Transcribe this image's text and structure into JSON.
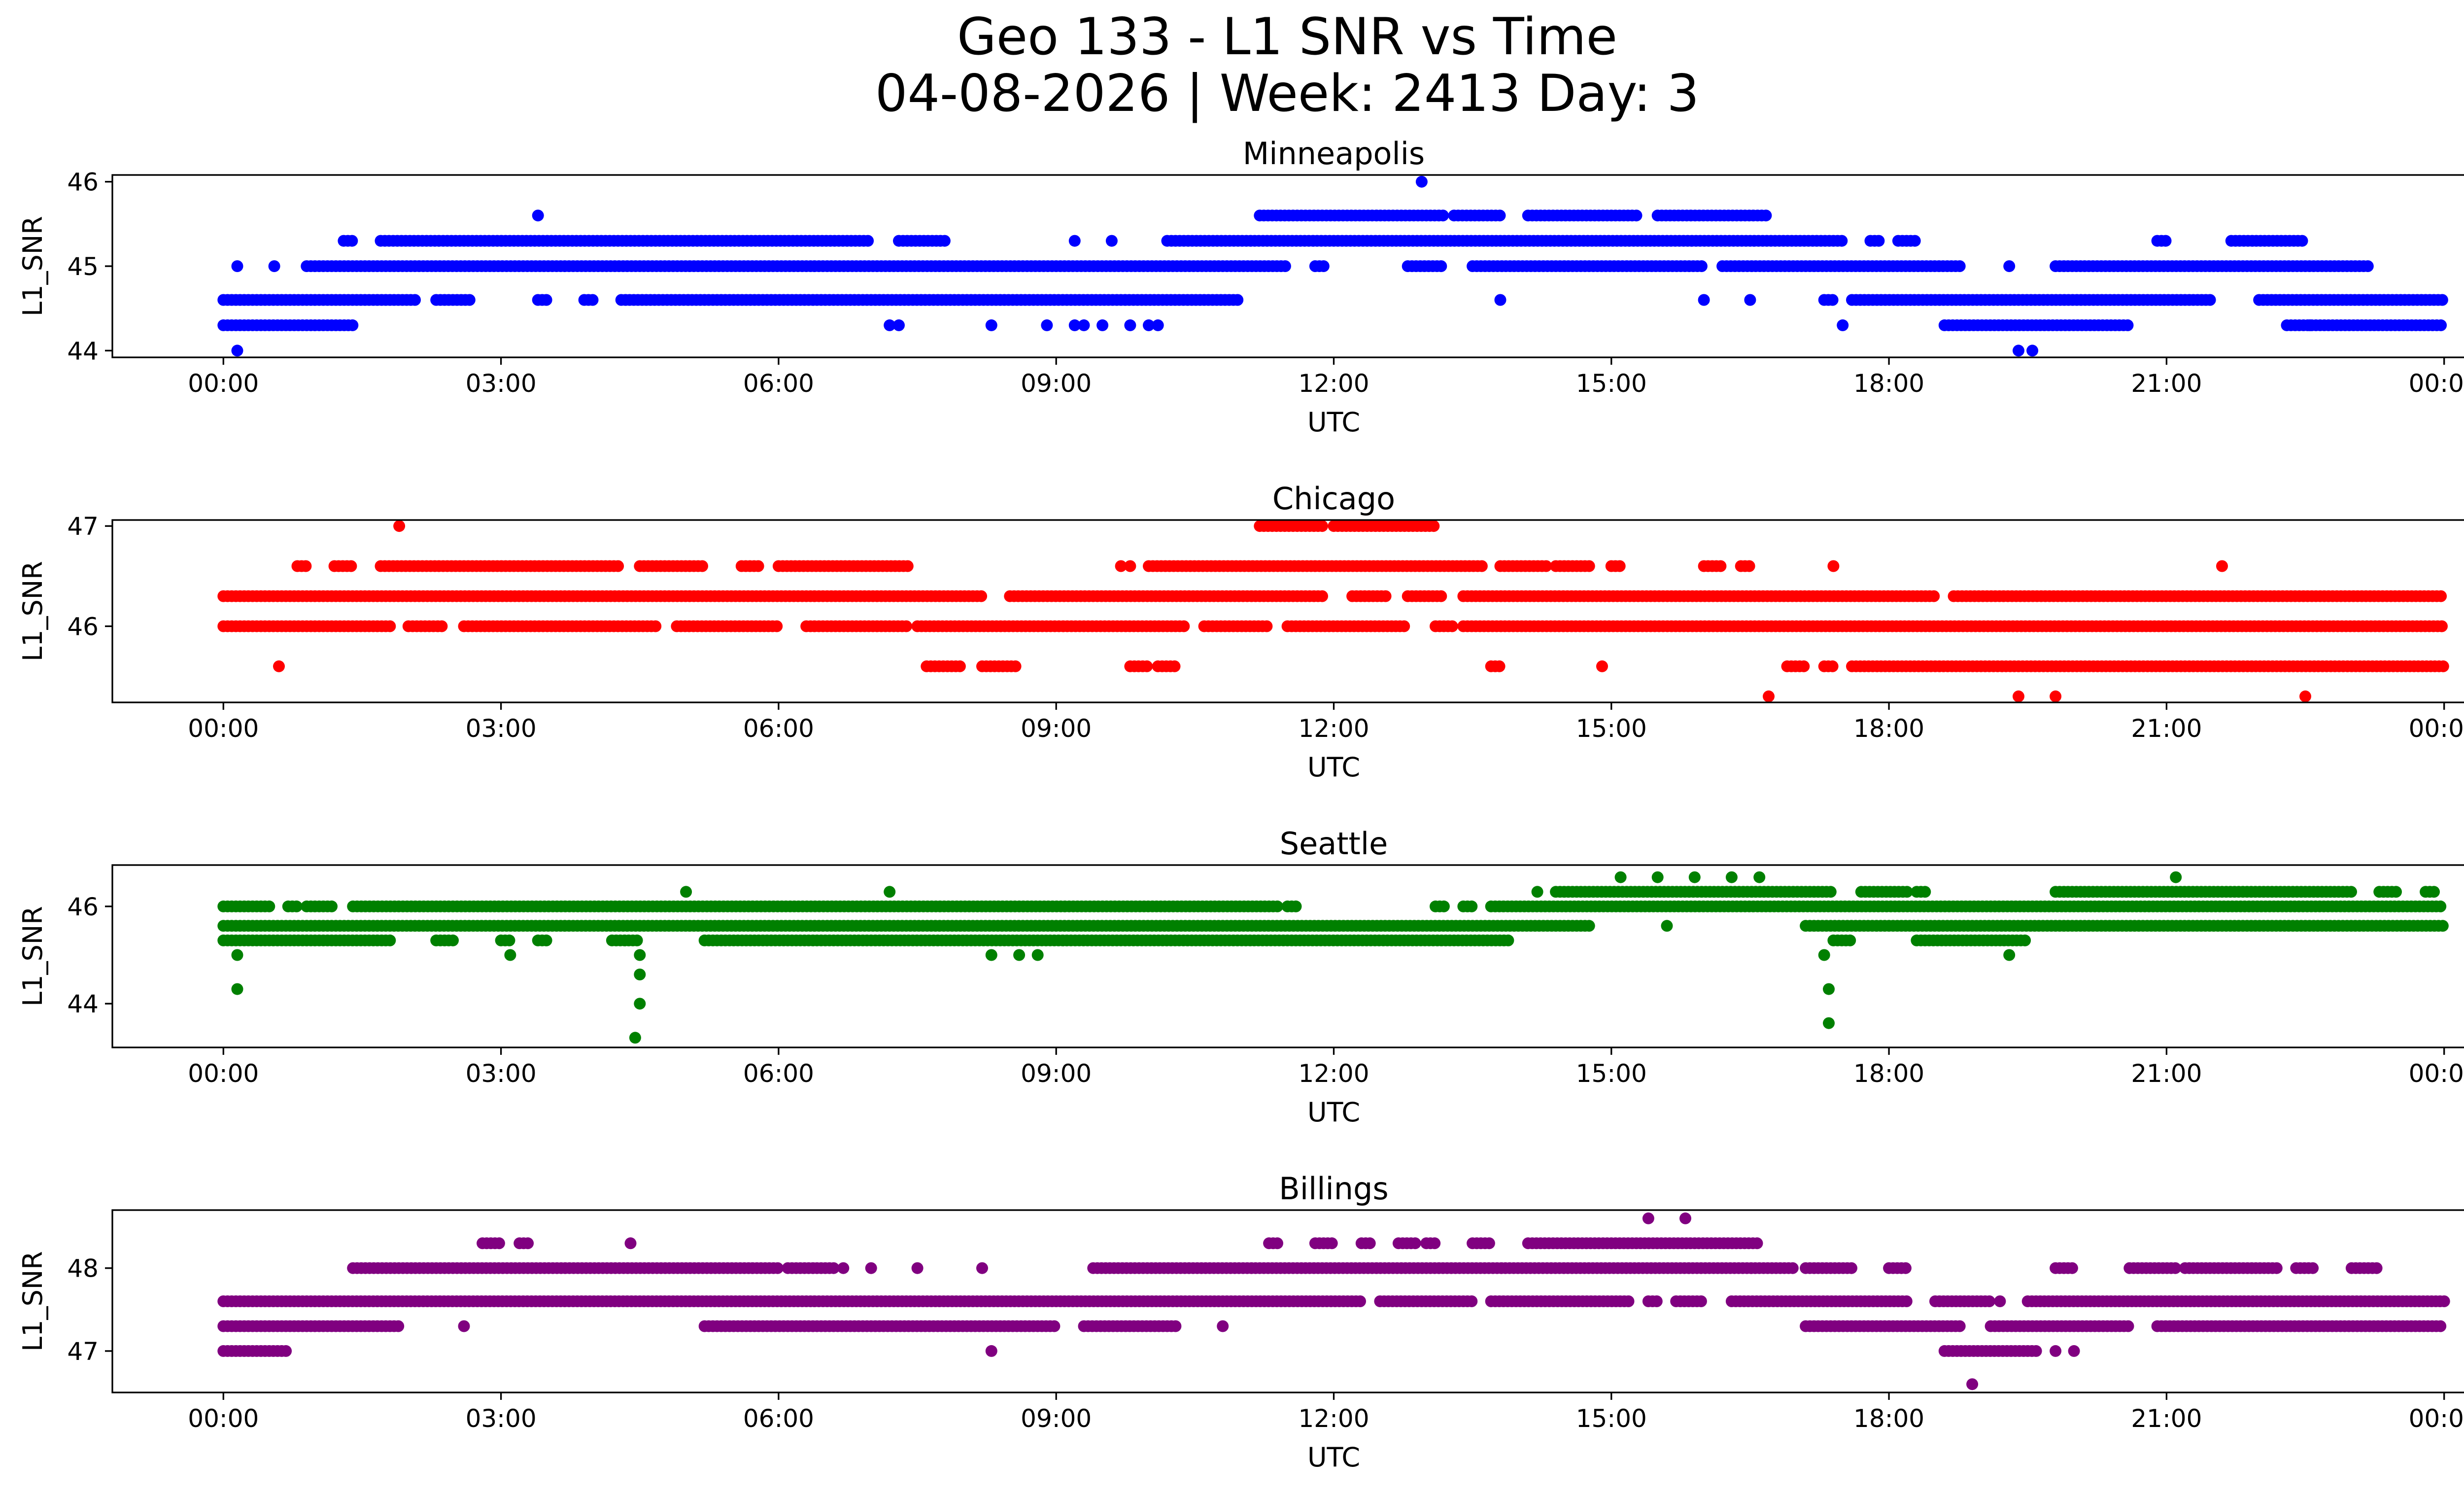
{
  "figure": {
    "title_line1": "Geo 133 - L1 SNR vs Time",
    "title_line2": "04-08-2026 | Week: 2413 Day: 3"
  },
  "chart_data": [
    {
      "type": "scatter",
      "title": "Minneapolis",
      "xlabel": "UTC",
      "ylabel": "L1_SNR",
      "color": "#0000ff",
      "x_unit": "hours UTC",
      "xlim": [
        -1.2,
        25.2
      ],
      "ylim": [
        43.92,
        46.08
      ],
      "xticks": [
        0,
        3,
        6,
        9,
        12,
        15,
        18,
        21,
        24
      ],
      "xtick_labels": [
        "00:00",
        "03:00",
        "06:00",
        "09:00",
        "12:00",
        "15:00",
        "18:00",
        "21:00",
        "00:00"
      ],
      "yticks": [
        44,
        45,
        46
      ],
      "ytick_labels": [
        "44",
        "45",
        "46"
      ],
      "bands": [
        {
          "y": 44.6,
          "segments": [
            [
              0,
              2.1
            ],
            [
              2.3,
              2.7
            ],
            [
              3.4,
              3.5
            ],
            [
              3.9,
              4.0
            ],
            [
              4.3,
              11.0
            ],
            [
              17.3,
              17.4
            ],
            [
              17.6,
              21.5
            ],
            [
              22.0,
              24.0
            ]
          ]
        },
        {
          "y": 44.3,
          "segments": [
            [
              0,
              1.4
            ],
            [
              18.6,
              20.6
            ],
            [
              22.3,
              24.0
            ]
          ]
        },
        {
          "y": 45.0,
          "segments": [
            [
              0.9,
              11.5
            ],
            [
              11.8,
              11.9
            ],
            [
              12.8,
              13.2
            ],
            [
              13.5,
              16.0
            ],
            [
              16.2,
              18.8
            ],
            [
              19.8,
              23.2
            ]
          ]
        },
        {
          "y": 45.3,
          "segments": [
            [
              1.3,
              1.4
            ],
            [
              1.7,
              7.0
            ],
            [
              7.3,
              7.8
            ],
            [
              10.2,
              17.5
            ],
            [
              17.8,
              17.9
            ],
            [
              18.1,
              18.3
            ],
            [
              20.9,
              21.0
            ],
            [
              21.7,
              22.5
            ]
          ]
        },
        {
          "y": 45.6,
          "segments": [
            [
              11.2,
              13.2
            ],
            [
              13.3,
              13.8
            ],
            [
              14.1,
              15.3
            ],
            [
              15.5,
              16.7
            ]
          ]
        }
      ],
      "points": [
        {
          "x": 0.15,
          "y": 44.0
        },
        {
          "x": 0.15,
          "y": 45.0
        },
        {
          "x": 0.55,
          "y": 45.0
        },
        {
          "x": 3.4,
          "y": 45.6
        },
        {
          "x": 7.2,
          "y": 44.3
        },
        {
          "x": 7.3,
          "y": 44.3
        },
        {
          "x": 8.3,
          "y": 44.3
        },
        {
          "x": 8.9,
          "y": 44.3
        },
        {
          "x": 9.2,
          "y": 44.3
        },
        {
          "x": 9.3,
          "y": 44.3
        },
        {
          "x": 9.5,
          "y": 44.3
        },
        {
          "x": 9.8,
          "y": 44.3
        },
        {
          "x": 10.0,
          "y": 44.3
        },
        {
          "x": 10.1,
          "y": 44.3
        },
        {
          "x": 9.2,
          "y": 45.3
        },
        {
          "x": 9.6,
          "y": 45.3
        },
        {
          "x": 12.95,
          "y": 46.0
        },
        {
          "x": 13.8,
          "y": 44.6
        },
        {
          "x": 16.0,
          "y": 44.6
        },
        {
          "x": 16.5,
          "y": 44.6
        },
        {
          "x": 17.5,
          "y": 44.3
        },
        {
          "x": 19.3,
          "y": 45.0
        },
        {
          "x": 19.4,
          "y": 44.0
        },
        {
          "x": 19.55,
          "y": 44.0
        },
        {
          "x": 22.55,
          "y": 44.3
        }
      ]
    },
    {
      "type": "scatter",
      "title": "Chicago",
      "xlabel": "UTC",
      "ylabel": "L1_SNR",
      "color": "#ff0000",
      "x_unit": "hours UTC",
      "xlim": [
        -1.2,
        25.2
      ],
      "ylim": [
        45.24,
        47.06
      ],
      "xticks": [
        0,
        3,
        6,
        9,
        12,
        15,
        18,
        21,
        24
      ],
      "xtick_labels": [
        "00:00",
        "03:00",
        "06:00",
        "09:00",
        "12:00",
        "15:00",
        "18:00",
        "21:00",
        "00:00"
      ],
      "yticks": [
        46,
        47
      ],
      "ytick_labels": [
        "46",
        "47"
      ],
      "bands": [
        {
          "y": 46.3,
          "segments": [
            [
              0,
              8.2
            ],
            [
              8.5,
              11.9
            ],
            [
              12.2,
              12.6
            ],
            [
              12.8,
              13.2
            ],
            [
              13.4,
              18.5
            ],
            [
              18.7,
              24.0
            ]
          ]
        },
        {
          "y": 46.0,
          "segments": [
            [
              0,
              1.8
            ],
            [
              2.0,
              2.4
            ],
            [
              2.6,
              4.7
            ],
            [
              4.9,
              6.0
            ],
            [
              6.3,
              7.4
            ],
            [
              7.5,
              10.4
            ],
            [
              10.6,
              11.3
            ],
            [
              11.5,
              12.8
            ],
            [
              13.1,
              13.3
            ],
            [
              13.4,
              24.0
            ]
          ]
        },
        {
          "y": 46.6,
          "segments": [
            [
              0.8,
              0.9
            ],
            [
              1.2,
              1.4
            ],
            [
              1.7,
              4.3
            ],
            [
              4.5,
              5.2
            ],
            [
              5.6,
              5.8
            ],
            [
              6.0,
              7.4
            ],
            [
              10.0,
              13.6
            ],
            [
              13.8,
              14.3
            ],
            [
              14.4,
              14.8
            ],
            [
              15.0,
              15.1
            ],
            [
              16.0,
              16.2
            ],
            [
              16.4,
              16.5
            ]
          ]
        },
        {
          "y": 45.6,
          "segments": [
            [
              7.6,
              8.0
            ],
            [
              8.2,
              8.6
            ],
            [
              9.8,
              10.0
            ],
            [
              10.1,
              10.3
            ],
            [
              13.7,
              13.8
            ],
            [
              16.9,
              17.1
            ],
            [
              17.3,
              17.4
            ],
            [
              17.6,
              24.0
            ]
          ]
        },
        {
          "y": 47.0,
          "segments": [
            [
              11.2,
              11.9
            ],
            [
              12.0,
              13.1
            ]
          ]
        }
      ],
      "points": [
        {
          "x": 0.6,
          "y": 45.6
        },
        {
          "x": 1.9,
          "y": 47.0
        },
        {
          "x": 9.7,
          "y": 46.6
        },
        {
          "x": 9.8,
          "y": 46.6
        },
        {
          "x": 14.9,
          "y": 45.6
        },
        {
          "x": 16.7,
          "y": 45.3
        },
        {
          "x": 17.4,
          "y": 46.6
        },
        {
          "x": 19.4,
          "y": 45.3
        },
        {
          "x": 19.8,
          "y": 45.3
        },
        {
          "x": 21.6,
          "y": 46.6
        },
        {
          "x": 22.5,
          "y": 45.3
        }
      ]
    },
    {
      "type": "scatter",
      "title": "Seattle",
      "xlabel": "UTC",
      "ylabel": "L1_SNR",
      "color": "#008000",
      "x_unit": "hours UTC",
      "xlim": [
        -1.2,
        25.2
      ],
      "ylim": [
        43.1,
        46.85
      ],
      "xticks": [
        0,
        3,
        6,
        9,
        12,
        15,
        18,
        21,
        24
      ],
      "xtick_labels": [
        "00:00",
        "03:00",
        "06:00",
        "09:00",
        "12:00",
        "15:00",
        "18:00",
        "21:00",
        "00:00"
      ],
      "yticks": [
        44,
        46
      ],
      "ytick_labels": [
        "44",
        "46"
      ],
      "bands": [
        {
          "y": 45.6,
          "segments": [
            [
              0,
              14.8
            ],
            [
              17.1,
              24.0
            ]
          ]
        },
        {
          "y": 45.3,
          "segments": [
            [
              0,
              1.8
            ],
            [
              2.3,
              2.5
            ],
            [
              3.0,
              3.1
            ],
            [
              3.4,
              3.5
            ],
            [
              4.2,
              4.5
            ],
            [
              5.2,
              13.9
            ]
          ]
        },
        {
          "y": 46.0,
          "segments": [
            [
              0,
              0.5
            ],
            [
              0.7,
              0.8
            ],
            [
              0.9,
              1.2
            ],
            [
              1.4,
              11.4
            ],
            [
              11.5,
              11.6
            ],
            [
              13.1,
              13.2
            ],
            [
              13.4,
              13.5
            ],
            [
              13.7,
              24.0
            ]
          ]
        },
        {
          "y": 46.3,
          "segments": [
            [
              14.4,
              17.4
            ],
            [
              17.7,
              18.2
            ],
            [
              18.3,
              18.4
            ],
            [
              19.8,
              23.0
            ],
            [
              23.3,
              23.5
            ],
            [
              23.8,
              23.9
            ]
          ]
        },
        {
          "y": 45.3,
          "segments": [
            [
              17.4,
              17.6
            ],
            [
              18.3,
              19.5
            ]
          ]
        }
      ],
      "points": [
        {
          "x": 0.15,
          "y": 45.0
        },
        {
          "x": 0.15,
          "y": 44.3
        },
        {
          "x": 3.1,
          "y": 45.0
        },
        {
          "x": 4.5,
          "y": 45.0
        },
        {
          "x": 4.5,
          "y": 44.6
        },
        {
          "x": 4.5,
          "y": 44.0
        },
        {
          "x": 4.45,
          "y": 43.3
        },
        {
          "x": 5.0,
          "y": 46.3
        },
        {
          "x": 7.2,
          "y": 46.3
        },
        {
          "x": 8.3,
          "y": 45.0
        },
        {
          "x": 8.6,
          "y": 45.0
        },
        {
          "x": 8.8,
          "y": 45.0
        },
        {
          "x": 14.2,
          "y": 46.3
        },
        {
          "x": 15.1,
          "y": 46.6
        },
        {
          "x": 15.6,
          "y": 45.6
        },
        {
          "x": 15.5,
          "y": 46.6
        },
        {
          "x": 15.9,
          "y": 46.6
        },
        {
          "x": 16.3,
          "y": 46.6
        },
        {
          "x": 16.6,
          "y": 46.6
        },
        {
          "x": 17.3,
          "y": 45.0
        },
        {
          "x": 17.35,
          "y": 44.3
        },
        {
          "x": 17.35,
          "y": 43.6
        },
        {
          "x": 19.3,
          "y": 45.0
        },
        {
          "x": 21.1,
          "y": 46.6
        }
      ]
    },
    {
      "type": "scatter",
      "title": "Billings",
      "xlabel": "UTC",
      "ylabel": "L1_SNR",
      "color": "#800080",
      "x_unit": "hours UTC",
      "xlim": [
        -1.2,
        25.2
      ],
      "ylim": [
        46.5,
        48.7
      ],
      "xticks": [
        0,
        3,
        6,
        9,
        12,
        15,
        18,
        21,
        24
      ],
      "xtick_labels": [
        "00:00",
        "03:00",
        "06:00",
        "09:00",
        "12:00",
        "15:00",
        "18:00",
        "21:00",
        "00:00"
      ],
      "yticks": [
        47,
        48
      ],
      "ytick_labels": [
        "47",
        "48"
      ],
      "bands": [
        {
          "y": 47.6,
          "segments": [
            [
              0,
              12.3
            ],
            [
              12.5,
              13.5
            ],
            [
              13.7,
              15.2
            ],
            [
              15.4,
              15.5
            ],
            [
              15.7,
              16.0
            ],
            [
              16.3,
              18.2
            ],
            [
              18.5,
              19.1
            ],
            [
              19.5,
              24.0
            ]
          ]
        },
        {
          "y": 47.3,
          "segments": [
            [
              0,
              1.9
            ],
            [
              5.2,
              9.0
            ],
            [
              9.3,
              10.3
            ],
            [
              17.1,
              18.8
            ],
            [
              19.1,
              20.6
            ],
            [
              20.9,
              24.0
            ]
          ]
        },
        {
          "y": 47.0,
          "segments": [
            [
              0,
              0.7
            ],
            [
              18.6,
              19.6
            ]
          ]
        },
        {
          "y": 48.0,
          "segments": [
            [
              1.4,
              6.0
            ],
            [
              6.1,
              6.6
            ],
            [
              9.4,
              17.0
            ],
            [
              17.1,
              17.6
            ],
            [
              18.0,
              18.2
            ],
            [
              19.8,
              20.0
            ],
            [
              20.6,
              21.1
            ],
            [
              21.2,
              22.2
            ],
            [
              22.4,
              22.6
            ],
            [
              23.0,
              23.3
            ]
          ]
        },
        {
          "y": 48.3,
          "segments": [
            [
              2.8,
              3.0
            ],
            [
              3.2,
              3.3
            ],
            [
              11.3,
              11.4
            ],
            [
              11.8,
              12.0
            ],
            [
              12.3,
              12.4
            ],
            [
              12.7,
              12.9
            ],
            [
              13.0,
              13.1
            ],
            [
              13.5,
              13.7
            ],
            [
              14.1,
              16.6
            ]
          ]
        }
      ],
      "points": [
        {
          "x": 2.6,
          "y": 47.3
        },
        {
          "x": 4.4,
          "y": 48.3
        },
        {
          "x": 6.7,
          "y": 48.0
        },
        {
          "x": 7.0,
          "y": 48.0
        },
        {
          "x": 7.5,
          "y": 48.0
        },
        {
          "x": 8.2,
          "y": 48.0
        },
        {
          "x": 8.3,
          "y": 47.0
        },
        {
          "x": 10.8,
          "y": 47.3
        },
        {
          "x": 15.4,
          "y": 48.6
        },
        {
          "x": 15.8,
          "y": 48.6
        },
        {
          "x": 18.9,
          "y": 46.6
        },
        {
          "x": 19.8,
          "y": 47.0
        },
        {
          "x": 20.0,
          "y": 47.0
        },
        {
          "x": 19.2,
          "y": 47.6
        }
      ]
    }
  ]
}
